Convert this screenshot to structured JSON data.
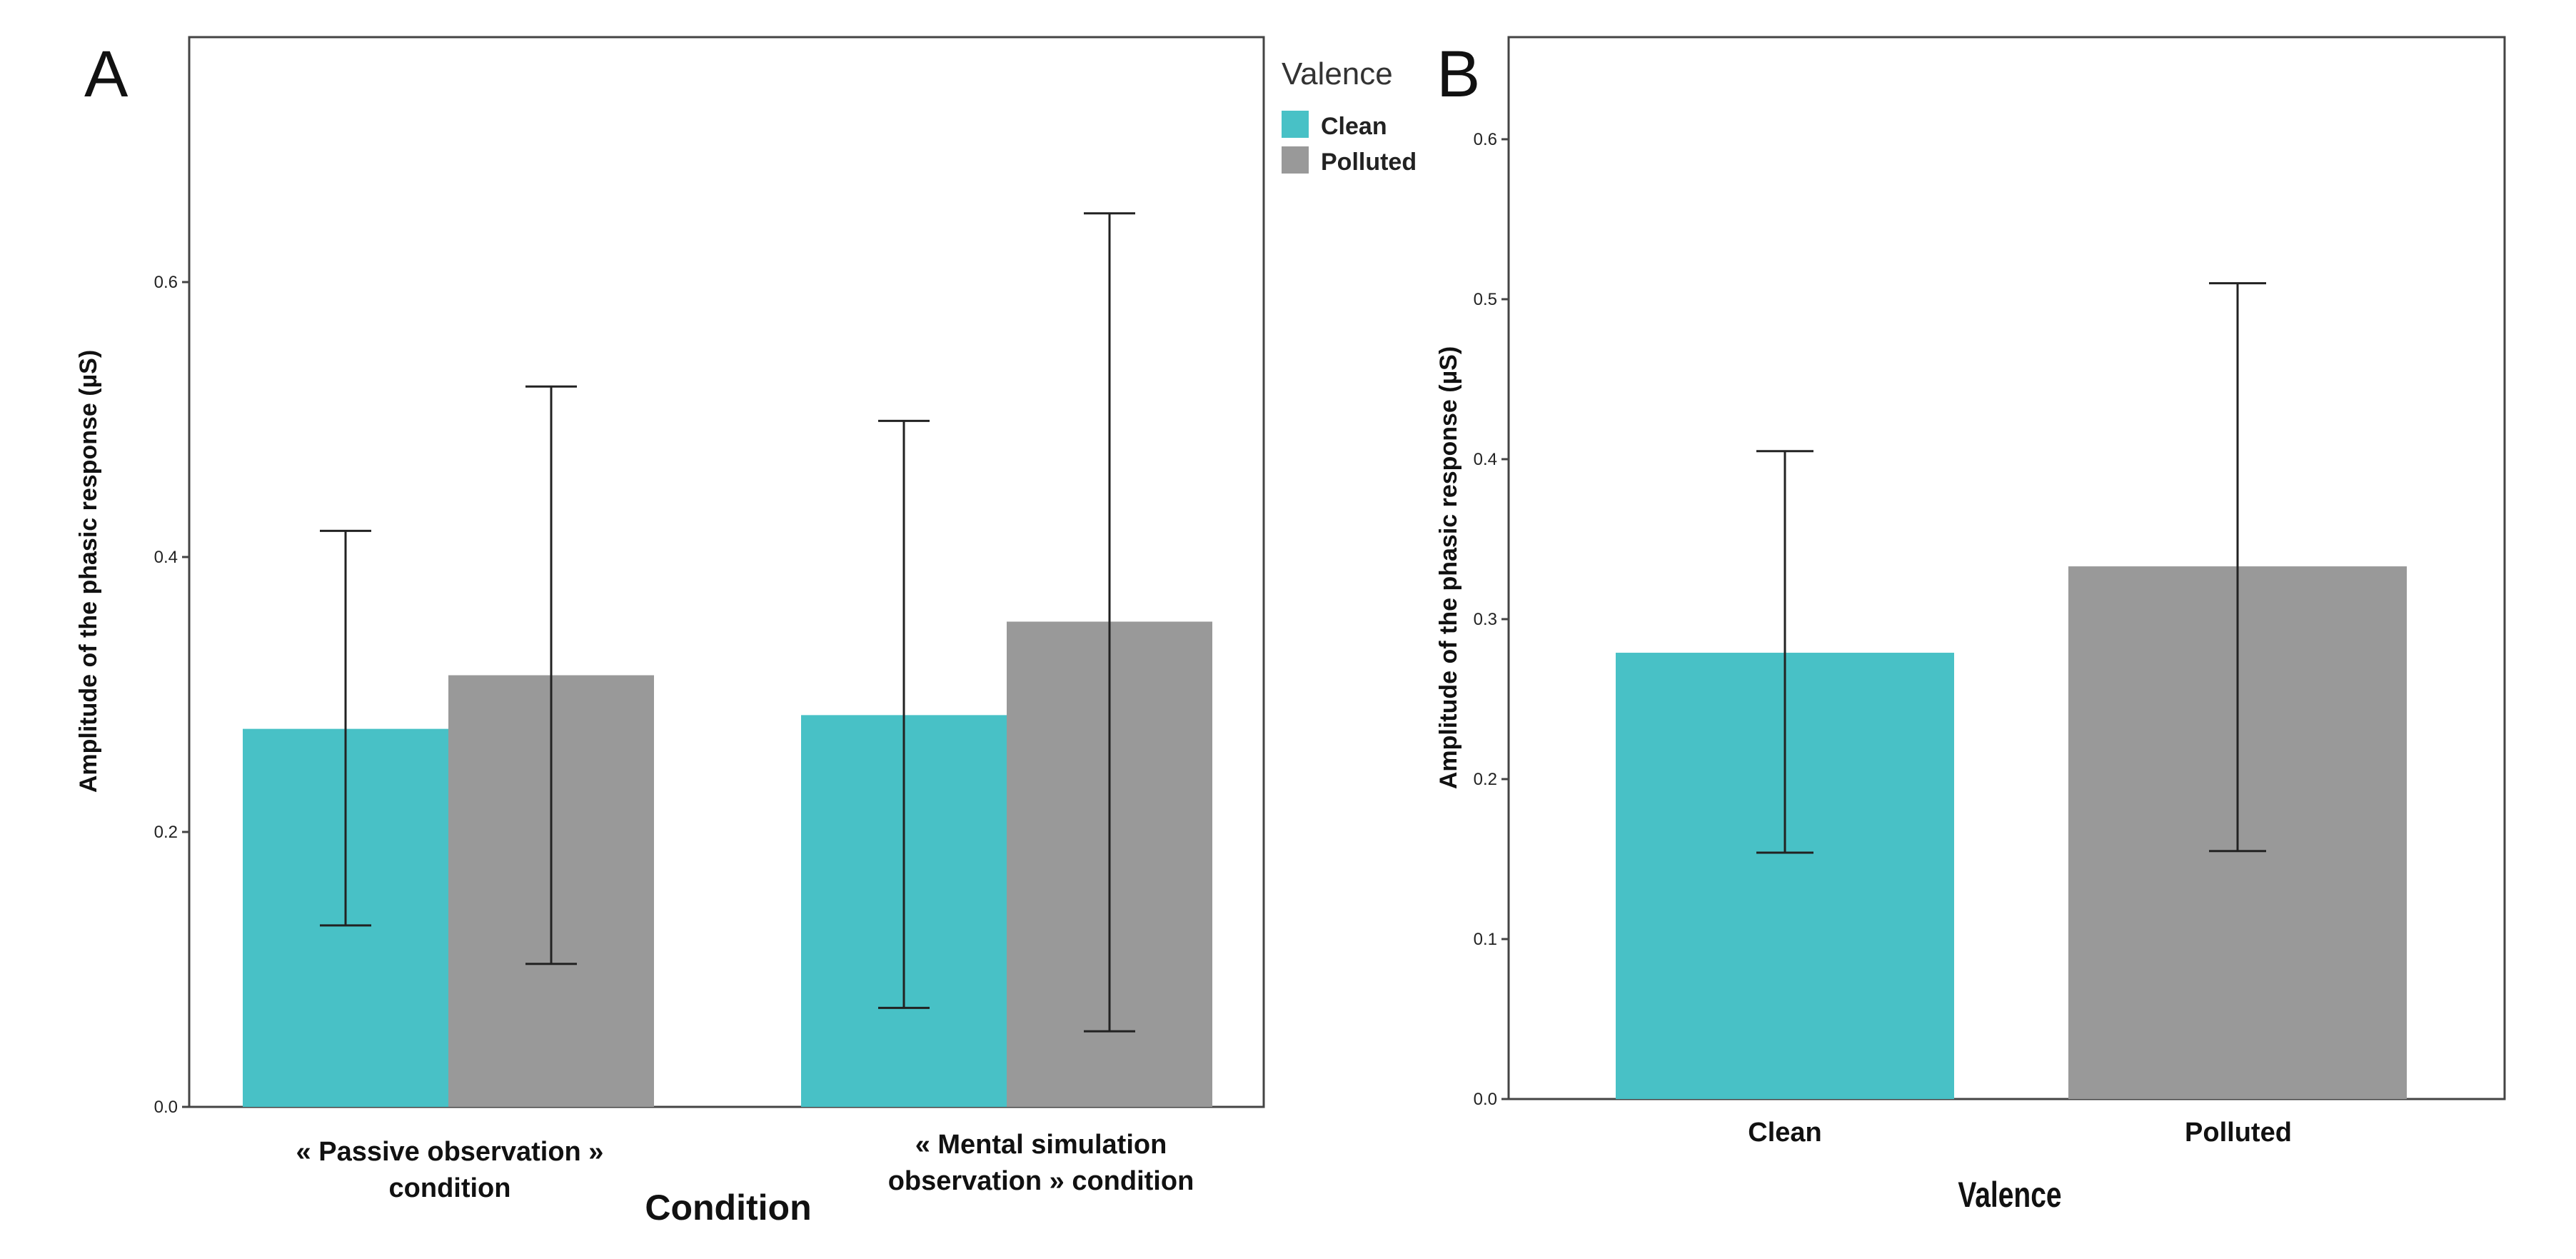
{
  "colors": {
    "clean": "#48c1c6",
    "polluted": "#999999",
    "axis": "#444444",
    "errorbar": "#222222"
  },
  "chart_data": [
    {
      "type": "bar",
      "panel": "A",
      "xlabel": "Condition",
      "ylabel": "Amplitude of the phasic response (µS)",
      "ylim": [
        0,
        0.78
      ],
      "yticks": [
        "0.0",
        "0.2",
        "0.4",
        "0.6"
      ],
      "categories": [
        [
          "« Passive observation »",
          "condition"
        ],
        [
          "« Mental simulation",
          "observation » condition"
        ]
      ],
      "legend": {
        "title": "Valence",
        "position": "outside-top-right"
      },
      "series": [
        {
          "name": "Clean",
          "values": [
            0.275,
            0.285
          ],
          "err_low": [
            0.132,
            0.072
          ],
          "err_high": [
            0.419,
            0.499
          ]
        },
        {
          "name": "Polluted",
          "values": [
            0.314,
            0.353
          ],
          "err_low": [
            0.104,
            0.055
          ],
          "err_high": [
            0.524,
            0.65
          ]
        }
      ]
    },
    {
      "type": "bar",
      "panel": "B",
      "xlabel": "Valence",
      "ylabel": "Amplitude of the phasic response (µS)",
      "ylim": [
        0,
        0.667
      ],
      "yticks": [
        "0.0",
        "0.1",
        "0.2",
        "0.3",
        "0.4",
        "0.5",
        "0.6"
      ],
      "categories": [
        "Clean",
        "Polluted"
      ],
      "values": [
        0.279,
        0.333
      ],
      "err_low": [
        0.154,
        0.155
      ],
      "err_high": [
        0.405,
        0.51
      ]
    }
  ]
}
